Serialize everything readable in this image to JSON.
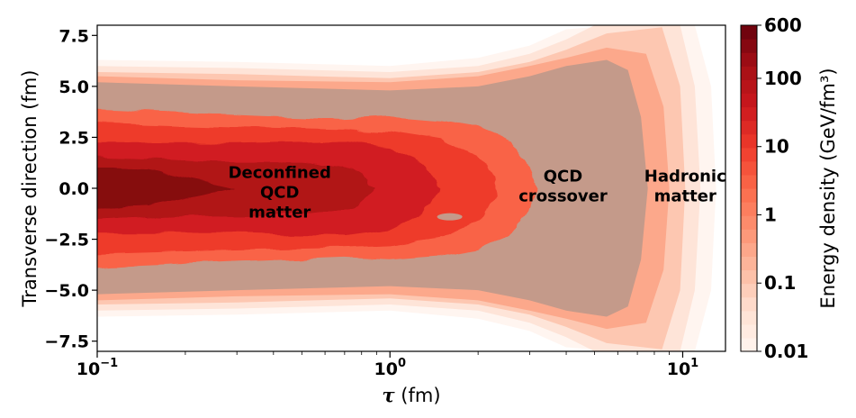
{
  "chart_data": {
    "type": "heatmap",
    "xlabel": "τ (fm)",
    "xlabel_symbol": "τ",
    "xlabel_unit": " (fm)",
    "ylabel": "Transverse direction (fm)",
    "x_scale": "log",
    "xlim": [
      0.1,
      14
    ],
    "ylim": [
      -8,
      8
    ],
    "x_ticks": [
      {
        "value": 0.1,
        "base": "10",
        "exp": "−1"
      },
      {
        "value": 1,
        "base": "10",
        "exp": "0"
      },
      {
        "value": 10,
        "base": "10",
        "exp": "1"
      }
    ],
    "y_ticks": [
      {
        "value": 7.5,
        "label": "7.5"
      },
      {
        "value": 5.0,
        "label": "5.0"
      },
      {
        "value": 2.5,
        "label": "2.5"
      },
      {
        "value": 0.0,
        "label": "0.0"
      },
      {
        "value": -2.5,
        "label": "−2.5"
      },
      {
        "value": -5.0,
        "label": "−5.0"
      },
      {
        "value": -7.5,
        "label": "−7.5"
      }
    ],
    "colorbar": {
      "label": "Energy density (GeV/fm³)",
      "scale": "log",
      "range": [
        0.01,
        600
      ],
      "ticks": [
        {
          "value": 600,
          "label": "600"
        },
        {
          "value": 100,
          "label": "100"
        },
        {
          "value": 10,
          "label": "10"
        },
        {
          "value": 1,
          "label": "1"
        },
        {
          "value": 0.1,
          "label": "0.1"
        },
        {
          "value": 0.01,
          "label": "0.01"
        }
      ],
      "colors": [
        "#fff5f0",
        "#fee0d2",
        "#fcbba1",
        "#fc9272",
        "#fb6a4a",
        "#ef3b2c",
        "#cb181d",
        "#a50f15",
        "#67000d"
      ]
    },
    "crossover_color": "#c49a8a",
    "annotations": [
      {
        "lines": [
          "Deconfined",
          "QCD",
          "matter"
        ],
        "x": 0.42,
        "y": -0.2
      },
      {
        "lines": [
          "QCD",
          "crossover"
        ],
        "x": 3.9,
        "y": 0.1
      },
      {
        "lines": [
          "Hadronic",
          "matter"
        ],
        "x": 10.2,
        "y": 0.1
      }
    ],
    "contours": [
      {
        "level": 0.01,
        "edge": [
          [
            0.1,
            6.3
          ],
          [
            0.3,
            6.2
          ],
          [
            1.0,
            6.0
          ],
          [
            2.0,
            6.4
          ],
          [
            3.0,
            7.0
          ],
          [
            4.0,
            7.8
          ],
          [
            6.0,
            8.0
          ],
          [
            11.0,
            8.0
          ],
          [
            12.5,
            5.0
          ],
          [
            13.0,
            0.0
          ]
        ]
      },
      {
        "level": 0.03,
        "edge": [
          [
            0.1,
            6.0
          ],
          [
            0.3,
            5.9
          ],
          [
            1.0,
            5.7
          ],
          [
            2.0,
            6.0
          ],
          [
            3.0,
            6.6
          ],
          [
            4.0,
            7.3
          ],
          [
            5.0,
            8.0
          ],
          [
            9.8,
            8.0
          ],
          [
            11.0,
            5.0
          ],
          [
            11.5,
            0.0
          ]
        ]
      },
      {
        "level": 0.1,
        "edge": [
          [
            0.1,
            5.7
          ],
          [
            0.3,
            5.6
          ],
          [
            1.0,
            5.4
          ],
          [
            2.0,
            5.7
          ],
          [
            3.0,
            6.2
          ],
          [
            4.0,
            6.8
          ],
          [
            5.5,
            7.6
          ],
          [
            8.5,
            7.9
          ],
          [
            9.8,
            5.0
          ],
          [
            10.2,
            0.0
          ]
        ]
      },
      {
        "level": 0.3,
        "edge": [
          [
            0.1,
            5.5
          ],
          [
            0.3,
            5.3
          ],
          [
            1.0,
            5.2
          ],
          [
            2.0,
            5.5
          ],
          [
            3.0,
            6.0
          ],
          [
            4.0,
            6.4
          ],
          [
            5.5,
            6.9
          ],
          [
            7.5,
            6.6
          ],
          [
            8.6,
            4.0
          ],
          [
            9.0,
            0.0
          ]
        ]
      },
      {
        "level": 1.0,
        "edge": [
          [
            0.1,
            5.2
          ],
          [
            0.3,
            5.0
          ],
          [
            1.0,
            4.8
          ],
          [
            2.0,
            5.0
          ],
          [
            3.0,
            5.5
          ],
          [
            4.0,
            6.0
          ],
          [
            5.5,
            6.3
          ],
          [
            6.5,
            5.8
          ],
          [
            7.2,
            3.5
          ],
          [
            7.6,
            0.0
          ]
        ]
      },
      {
        "level": 3.0,
        "edge": [
          [
            0.1,
            3.9
          ],
          [
            0.3,
            3.6
          ],
          [
            0.7,
            3.4
          ],
          [
            1.0,
            3.5
          ],
          [
            1.5,
            3.3
          ],
          [
            2.0,
            3.0
          ],
          [
            2.6,
            2.3
          ],
          [
            3.0,
            1.0
          ],
          [
            3.2,
            0.0
          ]
        ]
      },
      {
        "level": 10.0,
        "edge": [
          [
            0.1,
            3.2
          ],
          [
            0.3,
            3.0
          ],
          [
            0.7,
            2.9
          ],
          [
            1.0,
            2.8
          ],
          [
            1.5,
            2.4
          ],
          [
            2.0,
            1.6
          ],
          [
            2.3,
            0.5
          ],
          [
            2.3,
            0.0
          ]
        ]
      },
      {
        "level": 30.0,
        "edge": [
          [
            0.1,
            2.2
          ],
          [
            0.3,
            2.2
          ],
          [
            0.7,
            2.3
          ],
          [
            1.0,
            2.0
          ],
          [
            1.3,
            1.2
          ],
          [
            1.5,
            0.0
          ]
        ]
      },
      {
        "level": 100.0,
        "edge": [
          [
            0.1,
            1.5
          ],
          [
            0.25,
            1.3
          ],
          [
            0.5,
            1.3
          ],
          [
            0.75,
            1.0
          ],
          [
            0.9,
            0.0
          ]
        ]
      },
      {
        "level": 300.0,
        "edge": [
          [
            0.1,
            1.0
          ],
          [
            0.15,
            0.9
          ],
          [
            0.2,
            0.5
          ],
          [
            0.3,
            0.0
          ]
        ]
      }
    ]
  }
}
